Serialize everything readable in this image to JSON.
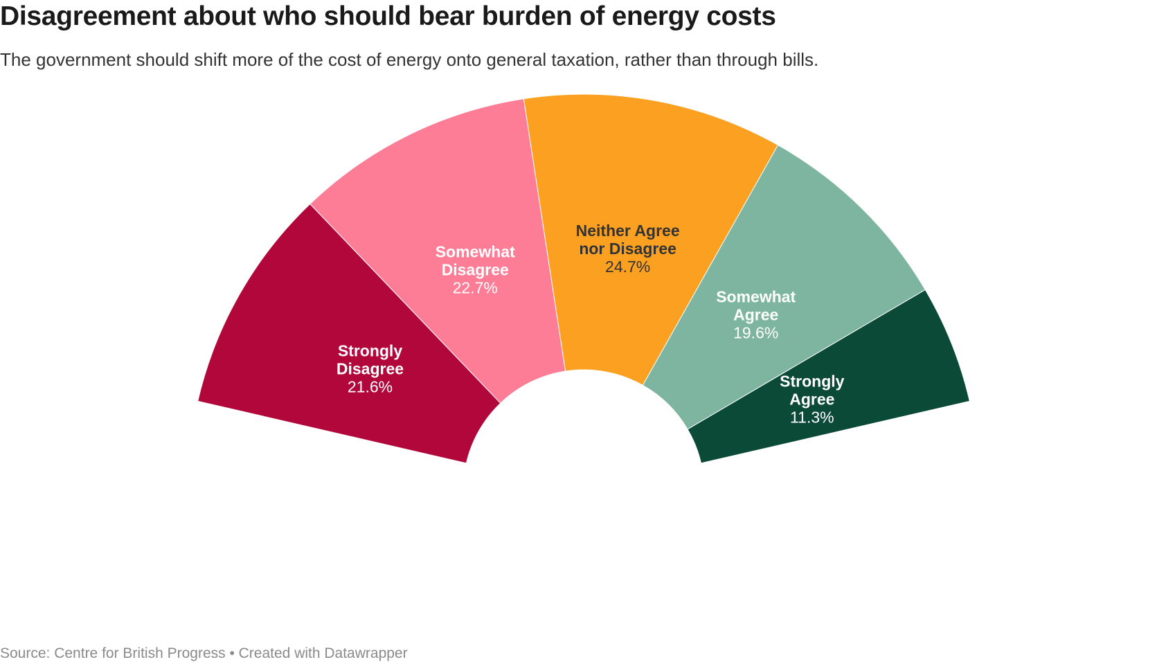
{
  "header": {
    "title": "Disagreement about who should bear burden of energy costs",
    "subtitle": "The government should shift more of the cost of energy onto general taxation, rather than through bills."
  },
  "footer": {
    "source": "Source: Centre for British Progress • Created with Datawrapper"
  },
  "chart_data": {
    "type": "pie",
    "variant": "semi-donut",
    "labels": [
      "Strongly Disagree",
      "Somewhat Disagree",
      "Neither Agree nor Disagree",
      "Somewhat Agree",
      "Strongly Agree"
    ],
    "label_lines": [
      [
        "Strongly",
        "Disagree"
      ],
      [
        "Somewhat",
        "Disagree"
      ],
      [
        "Neither Agree",
        "nor Disagree"
      ],
      [
        "Somewhat",
        "Agree"
      ],
      [
        "Strongly",
        "Agree"
      ]
    ],
    "values": [
      21.6,
      22.7,
      24.7,
      19.6,
      11.3
    ],
    "value_labels": [
      "21.6%",
      "22.7%",
      "24.7%",
      "19.6%",
      "11.3%"
    ],
    "colors": [
      "#b1073b",
      "#fd7d97",
      "#fba020",
      "#7db5a1",
      "#0b4a37"
    ],
    "label_colors": [
      "#ffffff",
      "#ffffff",
      "#333333",
      "#ffffff",
      "#ffffff"
    ]
  }
}
